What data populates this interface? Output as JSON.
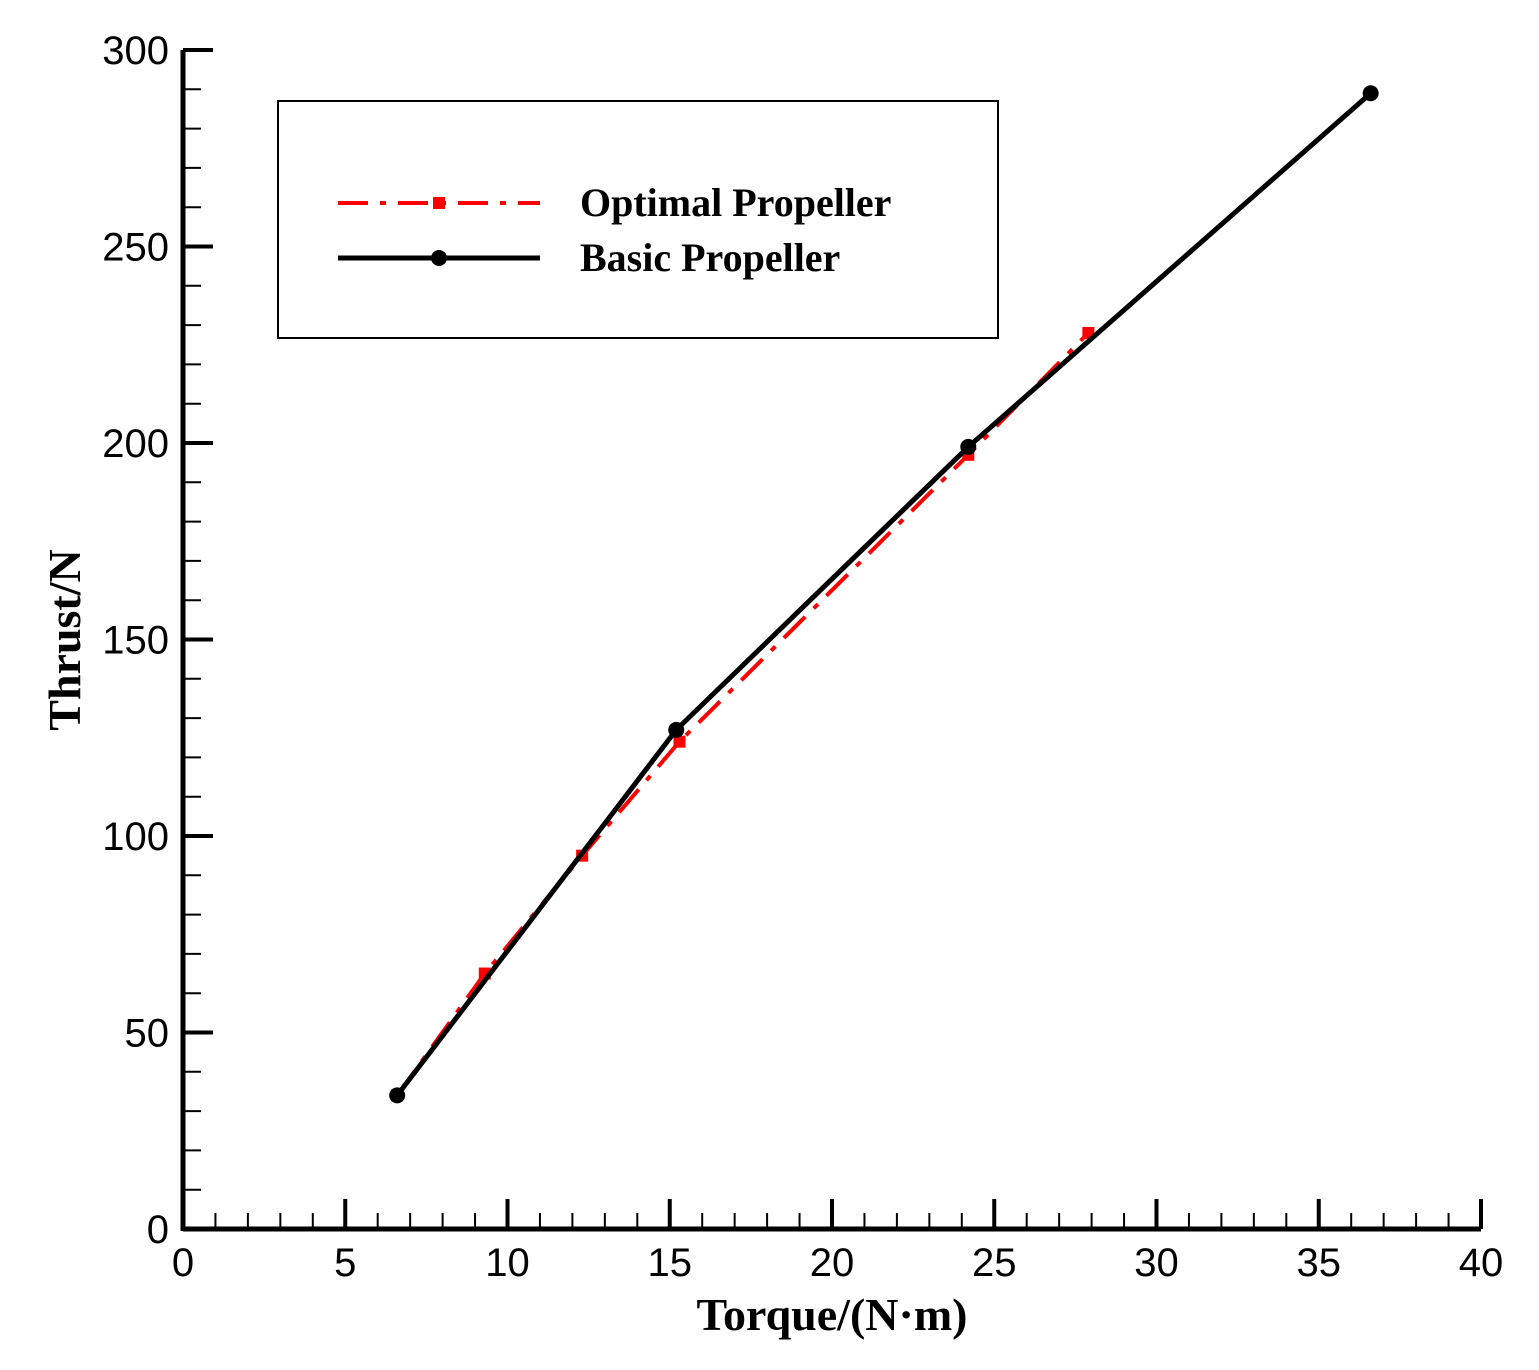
{
  "chart_data": {
    "type": "line",
    "xlabel": "Torque/(N·m)",
    "ylabel": "Thrust/N",
    "xlim": [
      0,
      40
    ],
    "ylim": [
      0,
      300
    ],
    "x_ticks": [
      0,
      5,
      10,
      15,
      20,
      25,
      30,
      35,
      40
    ],
    "y_ticks": [
      0,
      50,
      100,
      150,
      200,
      250,
      300
    ],
    "x_minor_step": 1,
    "y_minor_step": 10,
    "legend_position": "top-left",
    "series": [
      {
        "name": "Optimal Propeller",
        "color": "#ff0000",
        "line_style": "dash-dot",
        "marker": "square",
        "points": [
          {
            "x": 6.6,
            "y": 34
          },
          {
            "x": 9.3,
            "y": 65
          },
          {
            "x": 12.3,
            "y": 95
          },
          {
            "x": 15.3,
            "y": 124
          },
          {
            "x": 24.2,
            "y": 197
          },
          {
            "x": 27.9,
            "y": 228
          }
        ]
      },
      {
        "name": "Basic Propeller",
        "color": "#000000",
        "line_style": "solid",
        "marker": "circle",
        "points": [
          {
            "x": 6.6,
            "y": 34
          },
          {
            "x": 15.2,
            "y": 127
          },
          {
            "x": 24.2,
            "y": 199
          },
          {
            "x": 36.6,
            "y": 289
          }
        ]
      }
    ]
  }
}
